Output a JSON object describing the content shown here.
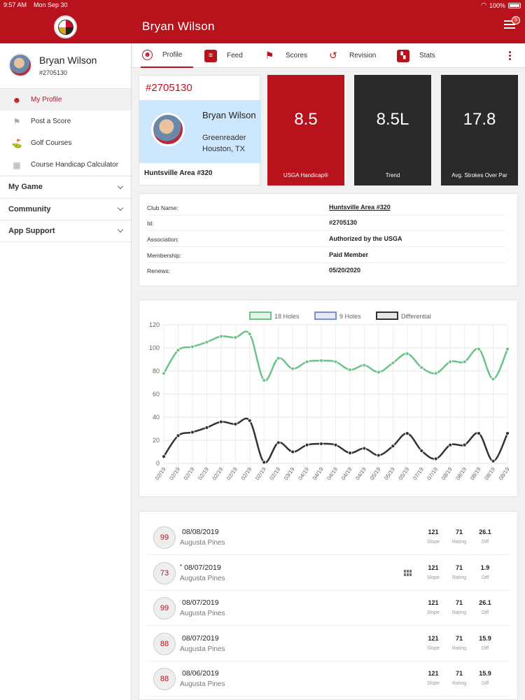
{
  "status_bar": {
    "time": "9:57 AM",
    "date": "Mon Sep 30",
    "battery": "100%"
  },
  "header": {
    "title": "Bryan Wilson",
    "menu_badge": "5"
  },
  "sidebar": {
    "name": "Bryan Wilson",
    "id": "#2705130",
    "items": [
      {
        "label": "My Profile",
        "icon": "profile-icon",
        "active": true
      },
      {
        "label": "Post a Score",
        "icon": "flag-icon"
      },
      {
        "label": "Golf Courses",
        "icon": "golf-tee-icon"
      },
      {
        "label": "Course Handicap Calculator",
        "icon": "calculator-icon"
      }
    ],
    "groups": [
      {
        "label": "My Game"
      },
      {
        "label": "Community"
      },
      {
        "label": "App Support"
      }
    ]
  },
  "tabs": [
    {
      "label": "Profile",
      "icon": "profile-icon",
      "active": true
    },
    {
      "label": "Feed",
      "icon": "feed-icon"
    },
    {
      "label": "Scores",
      "icon": "flag-icon"
    },
    {
      "label": "Revision",
      "icon": "history-icon"
    },
    {
      "label": "Stats",
      "icon": "stats-icon"
    }
  ],
  "profile_card": {
    "ghin": "#2705130",
    "name": "Bryan Wilson",
    "level": "Greenreader",
    "city": "Houston, TX",
    "club": "Huntsville Area #320"
  },
  "stats": [
    {
      "value": "8.5",
      "label": "USGA Handicap®",
      "color": "#b8121d"
    },
    {
      "value": "8.5L",
      "label": "Trend",
      "color": "#2a2a2a"
    },
    {
      "value": "17.8",
      "label": "Avg. Strokes Over Par",
      "color": "#2a2a2a"
    }
  ],
  "details": [
    {
      "key": "Club Name:",
      "value": "Huntsville Area #320",
      "link": true
    },
    {
      "key": "Id:",
      "value": "#2705130"
    },
    {
      "key": "Association:",
      "value": "Authorized by the USGA"
    },
    {
      "key": "Membership:",
      "value": "Paid Member"
    },
    {
      "key": "Renews:",
      "value": "05/20/2020"
    }
  ],
  "chart_data": {
    "type": "line",
    "legend": [
      {
        "name": "18 Holes",
        "color": "#6cc38a"
      },
      {
        "name": "9 Holes",
        "color": "#7a8fcf"
      },
      {
        "name": "Differential",
        "color": "#333333"
      }
    ],
    "legend_position": "top",
    "x": [
      "02/19",
      "02/19",
      "02/19",
      "02/19",
      "02/19",
      "02/19",
      "02/19",
      "02/19",
      "02/19",
      "03/19",
      "04/19",
      "04/19",
      "04/19",
      "04/19",
      "04/19",
      "05/19",
      "05/19",
      "05/19",
      "07/19",
      "07/19",
      "08/19",
      "08/19",
      "08/19",
      "08/19",
      "08/19"
    ],
    "series": [
      {
        "name": "18 Holes",
        "values": [
          78,
          98,
          101,
          105,
          110,
          109,
          112,
          72,
          91,
          82,
          88,
          89,
          88,
          81,
          85,
          79,
          87,
          95,
          83,
          78,
          88,
          88,
          99,
          73,
          99
        ]
      },
      {
        "name": "Differential",
        "values": [
          6,
          24,
          27,
          31,
          36,
          34,
          37,
          1,
          18,
          10,
          16,
          17,
          16,
          9,
          13,
          7,
          15,
          26,
          11,
          4,
          16,
          16,
          26,
          2,
          26
        ]
      }
    ],
    "yticks": [
      0,
      20,
      40,
      60,
      80,
      100,
      120
    ],
    "ylim": [
      0,
      120
    ],
    "grid": true
  },
  "scores": [
    {
      "score": "99",
      "date": "08/08/2019",
      "course": "Augusta Pines",
      "slope": "121",
      "rating": "71",
      "diff": "26.1",
      "star": "",
      "grid": false
    },
    {
      "score": "73",
      "date": "08/07/2019",
      "course": "Augusta Pines",
      "slope": "121",
      "rating": "71",
      "diff": "1.9",
      "star": "*",
      "grid": true
    },
    {
      "score": "99",
      "date": "08/07/2019",
      "course": "Augusta Pines",
      "slope": "121",
      "rating": "71",
      "diff": "26.1",
      "star": "",
      "grid": false
    },
    {
      "score": "88",
      "date": "08/07/2019",
      "course": "Augusta Pines",
      "slope": "121",
      "rating": "71",
      "diff": "15.9",
      "star": "",
      "grid": false
    },
    {
      "score": "88",
      "date": "08/06/2019",
      "course": "Augusta Pines",
      "slope": "121",
      "rating": "71",
      "diff": "15.9",
      "star": "",
      "grid": false
    }
  ],
  "score_labels": {
    "slope": "Slope",
    "rating": "Rating",
    "diff": "Diff"
  }
}
